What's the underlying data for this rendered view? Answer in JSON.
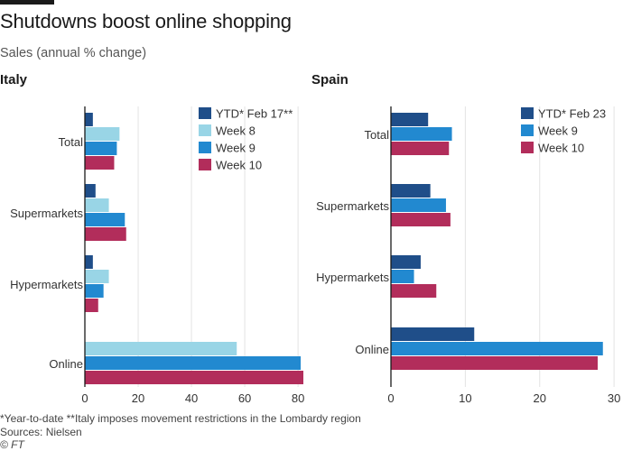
{
  "title": "Shutdowns boost online shopping",
  "subtitle": "Sales (annual % change)",
  "footnote": "*Year-to-date   **Italy imposes movement restrictions in the Lombardy region",
  "source": "Sources: Nielsen",
  "credit": "© FT",
  "colors": {
    "ytd": "#1f4e89",
    "week8": "#99d5e6",
    "week9": "#2289d0",
    "week10": "#b22d5b",
    "grid": "#e3e3e3",
    "axis": "#1a1a1a",
    "text": "#333333"
  },
  "chart_data": [
    {
      "type": "bar",
      "orientation": "horizontal",
      "title": "Italy",
      "categories": [
        "Total",
        "Supermarkets",
        "Hypermarkets",
        "Online"
      ],
      "xlim": [
        0,
        82
      ],
      "xticks": [
        0,
        20,
        40,
        60,
        80
      ],
      "legend_position": "top-right",
      "grid": true,
      "series": [
        {
          "name": "YTD* Feb 17**",
          "key": "ytd",
          "values": [
            3,
            4,
            3,
            null
          ]
        },
        {
          "name": "Week 8",
          "key": "week8",
          "values": [
            13,
            9,
            9,
            57
          ]
        },
        {
          "name": "Week 9",
          "key": "week9",
          "values": [
            12,
            15,
            7,
            81
          ]
        },
        {
          "name": "Week 10",
          "key": "week10",
          "values": [
            11,
            15.5,
            5,
            82
          ]
        }
      ]
    },
    {
      "type": "bar",
      "orientation": "horizontal",
      "title": "Spain",
      "categories": [
        "Total",
        "Supermarkets",
        "Hypermarkets",
        "Online"
      ],
      "xlim": [
        0,
        29.5
      ],
      "xticks": [
        0,
        10,
        20,
        30
      ],
      "legend_position": "top-right",
      "grid": true,
      "series": [
        {
          "name": "YTD* Feb 23",
          "key": "ytd",
          "values": [
            5,
            5.3,
            4,
            11.2
          ]
        },
        {
          "name": "Week 9",
          "key": "week9",
          "values": [
            8.2,
            7.4,
            3.1,
            28.5
          ]
        },
        {
          "name": "Week 10",
          "key": "week10",
          "values": [
            7.8,
            8,
            6.1,
            27.8
          ]
        }
      ]
    }
  ]
}
